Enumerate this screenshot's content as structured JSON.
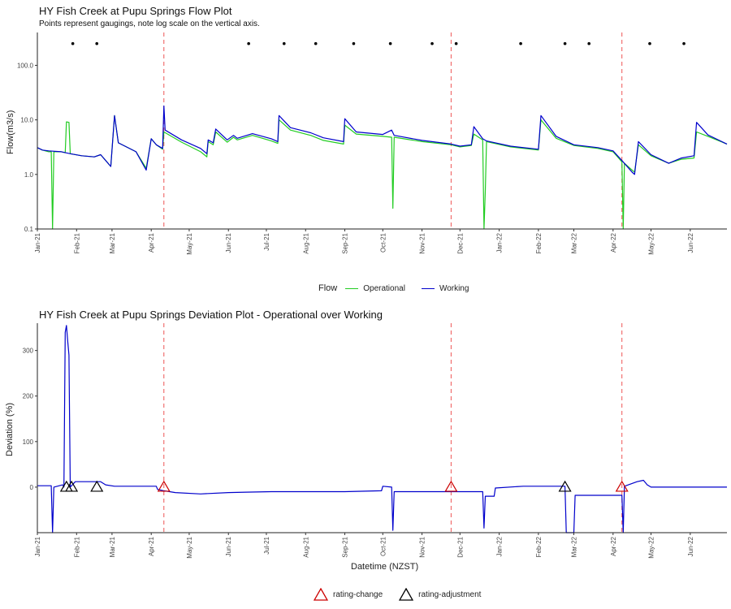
{
  "chart_data": [
    {
      "type": "line",
      "title": "HY Fish Creek at Pupu Springs Flow Plot",
      "subtitle": "Points represent gaugings, note log scale on the vertical axis.",
      "xlabel": "",
      "ylabel": "Flow(m3/s)",
      "y_scale": "log10",
      "ylim": [
        0.1,
        400
      ],
      "xlim": [
        "2021-01-01",
        "2022-06-30"
      ],
      "yticks": [
        "0.1",
        "1.0",
        "10.0",
        "100.0"
      ],
      "ytick_values": [
        0.1,
        1,
        10,
        100
      ],
      "xticks": [
        "Jan-21",
        "Feb-21",
        "Mar-21",
        "Apr-21",
        "May-21",
        "Jun-21",
        "Jul-21",
        "Aug-21",
        "Sep-21",
        "Oct-21",
        "Nov-21",
        "Dec-21",
        "Jan-22",
        "Feb-22",
        "Mar-22",
        "Apr-22",
        "May-22",
        "Jun-22"
      ],
      "xtick_dates": [
        "2021-01-01",
        "2021-02-01",
        "2021-03-01",
        "2021-04-01",
        "2021-05-01",
        "2021-06-01",
        "2021-07-01",
        "2021-08-01",
        "2021-09-01",
        "2021-10-01",
        "2021-11-01",
        "2021-12-01",
        "2022-01-01",
        "2022-02-01",
        "2022-03-01",
        "2022-04-01",
        "2022-05-01",
        "2022-06-01"
      ],
      "grid": false,
      "legend": "bottom",
      "legend_title": "Flow",
      "series": [
        {
          "name": "Operational",
          "color": "#22cc22",
          "points": [
            [
              "2021-01-01",
              3.1
            ],
            [
              "2021-01-05",
              2.8
            ],
            [
              "2021-01-10",
              2.6
            ],
            [
              "2021-01-12",
              2.6
            ],
            [
              "2021-01-13",
              0.1
            ],
            [
              "2021-01-14",
              2.6
            ],
            [
              "2021-01-20",
              2.6
            ],
            [
              "2021-01-23",
              2.5
            ],
            [
              "2021-01-24",
              9.2
            ],
            [
              "2021-01-26",
              9.0
            ],
            [
              "2021-01-27",
              2.4
            ],
            [
              "2021-02-05",
              2.2
            ],
            [
              "2021-02-15",
              2.1
            ],
            [
              "2021-02-20",
              2.3
            ],
            [
              "2021-02-28",
              1.4
            ],
            [
              "2021-03-03",
              12.0
            ],
            [
              "2021-03-06",
              3.8
            ],
            [
              "2021-03-20",
              2.6
            ],
            [
              "2021-03-28",
              1.3
            ],
            [
              "2021-04-01",
              4.5
            ],
            [
              "2021-04-05",
              3.5
            ],
            [
              "2021-04-10",
              2.9
            ],
            [
              "2021-04-11",
              6.0
            ],
            [
              "2021-04-25",
              3.9
            ],
            [
              "2021-05-10",
              2.6
            ],
            [
              "2021-05-15",
              2.1
            ],
            [
              "2021-05-16",
              4.0
            ],
            [
              "2021-05-20",
              3.5
            ],
            [
              "2021-05-22",
              6.0
            ],
            [
              "2021-05-31",
              3.9
            ],
            [
              "2021-06-05",
              4.8
            ],
            [
              "2021-06-08",
              4.3
            ],
            [
              "2021-06-20",
              5.2
            ],
            [
              "2021-07-05",
              4.1
            ],
            [
              "2021-07-10",
              3.7
            ],
            [
              "2021-07-11",
              10.0
            ],
            [
              "2021-07-20",
              6.5
            ],
            [
              "2021-08-05",
              5.2
            ],
            [
              "2021-08-15",
              4.2
            ],
            [
              "2021-08-31",
              3.6
            ],
            [
              "2021-09-01",
              8.0
            ],
            [
              "2021-09-10",
              5.5
            ],
            [
              "2021-10-01",
              5.0
            ],
            [
              "2021-10-08",
              4.8
            ],
            [
              "2021-10-09",
              0.24
            ],
            [
              "2021-10-10",
              4.8
            ],
            [
              "2021-11-01",
              4.0
            ],
            [
              "2021-11-24",
              3.5
            ],
            [
              "2021-12-01",
              3.2
            ],
            [
              "2021-12-10",
              3.4
            ],
            [
              "2021-12-12",
              5.5
            ],
            [
              "2021-12-19",
              4.3
            ],
            [
              "2021-12-20",
              0.1
            ],
            [
              "2021-12-21",
              0.5
            ],
            [
              "2021-12-22",
              4.0
            ],
            [
              "2022-01-10",
              3.2
            ],
            [
              "2022-02-01",
              2.8
            ],
            [
              "2022-02-03",
              10.0
            ],
            [
              "2022-02-15",
              4.6
            ],
            [
              "2022-03-01",
              3.4
            ],
            [
              "2022-03-20",
              3.0
            ],
            [
              "2022-04-01",
              2.6
            ],
            [
              "2022-04-08",
              1.7
            ],
            [
              "2022-04-09",
              0.1
            ],
            [
              "2022-04-10",
              1.6
            ],
            [
              "2022-04-16",
              1.2
            ],
            [
              "2022-04-18",
              1.1
            ],
            [
              "2022-04-21",
              3.5
            ],
            [
              "2022-05-01",
              2.2
            ],
            [
              "2022-05-15",
              1.6
            ],
            [
              "2022-05-25",
              1.9
            ],
            [
              "2022-06-04",
              2.0
            ],
            [
              "2022-06-06",
              6.0
            ],
            [
              "2022-06-15",
              5.0
            ],
            [
              "2022-06-30",
              3.6
            ]
          ]
        },
        {
          "name": "Working",
          "color": "#0000cc",
          "points": [
            [
              "2021-01-01",
              3.1
            ],
            [
              "2021-01-05",
              2.8
            ],
            [
              "2021-01-10",
              2.7
            ],
            [
              "2021-01-20",
              2.6
            ],
            [
              "2021-01-27",
              2.4
            ],
            [
              "2021-02-05",
              2.2
            ],
            [
              "2021-02-15",
              2.1
            ],
            [
              "2021-02-20",
              2.3
            ],
            [
              "2021-02-28",
              1.4
            ],
            [
              "2021-03-03",
              12.0
            ],
            [
              "2021-03-06",
              3.8
            ],
            [
              "2021-03-20",
              2.6
            ],
            [
              "2021-03-28",
              1.2
            ],
            [
              "2021-04-01",
              4.5
            ],
            [
              "2021-04-05",
              3.5
            ],
            [
              "2021-04-10",
              3.0
            ],
            [
              "2021-04-11",
              18.0
            ],
            [
              "2021-04-12",
              6.5
            ],
            [
              "2021-04-25",
              4.3
            ],
            [
              "2021-05-10",
              3.0
            ],
            [
              "2021-05-15",
              2.4
            ],
            [
              "2021-05-16",
              4.3
            ],
            [
              "2021-05-20",
              3.8
            ],
            [
              "2021-05-22",
              6.8
            ],
            [
              "2021-05-31",
              4.3
            ],
            [
              "2021-06-05",
              5.2
            ],
            [
              "2021-06-08",
              4.6
            ],
            [
              "2021-06-20",
              5.6
            ],
            [
              "2021-07-05",
              4.5
            ],
            [
              "2021-07-10",
              4.0
            ],
            [
              "2021-07-11",
              12.0
            ],
            [
              "2021-07-20",
              7.2
            ],
            [
              "2021-08-05",
              5.8
            ],
            [
              "2021-08-15",
              4.7
            ],
            [
              "2021-08-31",
              4.0
            ],
            [
              "2021-09-01",
              10.5
            ],
            [
              "2021-09-10",
              6.0
            ],
            [
              "2021-10-01",
              5.4
            ],
            [
              "2021-10-08",
              6.5
            ],
            [
              "2021-10-10",
              5.2
            ],
            [
              "2021-11-01",
              4.2
            ],
            [
              "2021-11-24",
              3.6
            ],
            [
              "2021-12-01",
              3.3
            ],
            [
              "2021-12-10",
              3.5
            ],
            [
              "2021-12-12",
              7.5
            ],
            [
              "2021-12-19",
              4.5
            ],
            [
              "2021-12-22",
              4.1
            ],
            [
              "2022-01-10",
              3.3
            ],
            [
              "2022-02-01",
              2.9
            ],
            [
              "2022-02-03",
              12.0
            ],
            [
              "2022-02-15",
              5.0
            ],
            [
              "2022-03-01",
              3.5
            ],
            [
              "2022-03-20",
              3.1
            ],
            [
              "2022-04-01",
              2.7
            ],
            [
              "2022-04-08",
              1.8
            ],
            [
              "2022-04-16",
              1.1
            ],
            [
              "2022-04-18",
              1.0
            ],
            [
              "2022-04-21",
              4.0
            ],
            [
              "2022-05-01",
              2.3
            ],
            [
              "2022-05-15",
              1.6
            ],
            [
              "2022-05-25",
              2.0
            ],
            [
              "2022-06-04",
              2.2
            ],
            [
              "2022-06-06",
              9.0
            ],
            [
              "2022-06-15",
              5.3
            ],
            [
              "2022-06-30",
              3.6
            ]
          ]
        }
      ],
      "gaugings": {
        "y": 250,
        "dates": [
          "2021-01-29",
          "2021-02-17",
          "2021-06-17",
          "2021-07-15",
          "2021-08-09",
          "2021-09-08",
          "2021-10-07",
          "2021-11-09",
          "2021-11-28",
          "2022-01-18",
          "2022-02-22",
          "2022-03-13",
          "2022-04-30",
          "2022-05-27"
        ]
      },
      "rating_change_dates": [
        "2021-04-11",
        "2021-11-24",
        "2022-04-08"
      ]
    },
    {
      "type": "line",
      "title": "HY Fish Creek at Pupu Springs Deviation Plot - Operational over Working",
      "xlabel": "Datetime (NZST)",
      "ylabel": "Deviation (%)",
      "ylim": [
        -100,
        360
      ],
      "xlim": [
        "2021-01-01",
        "2022-06-30"
      ],
      "yticks": [
        "0",
        "100",
        "200",
        "300"
      ],
      "ytick_values": [
        0,
        100,
        200,
        300
      ],
      "xticks": [
        "Jan-21",
        "Feb-21",
        "Mar-21",
        "Apr-21",
        "May-21",
        "Jun-21",
        "Jul-21",
        "Aug-21",
        "Sep-21",
        "Oct-21",
        "Nov-21",
        "Dec-21",
        "Jan-22",
        "Feb-22",
        "Mar-22",
        "Apr-22",
        "May-22",
        "Jun-22"
      ],
      "xtick_dates": [
        "2021-01-01",
        "2021-02-01",
        "2021-03-01",
        "2021-04-01",
        "2021-05-01",
        "2021-06-01",
        "2021-07-01",
        "2021-08-01",
        "2021-09-01",
        "2021-10-01",
        "2021-11-01",
        "2021-12-01",
        "2022-01-01",
        "2022-02-01",
        "2022-03-01",
        "2022-04-01",
        "2022-05-01",
        "2022-06-01"
      ],
      "grid": false,
      "legend": "bottom",
      "series": [
        {
          "name": "",
          "color": "#0000cc",
          "points": [
            [
              "2021-01-01",
              3
            ],
            [
              "2021-01-12",
              3
            ],
            [
              "2021-01-13",
              -100
            ],
            [
              "2021-01-14",
              0
            ],
            [
              "2021-01-21",
              5
            ],
            [
              "2021-01-22",
              0
            ],
            [
              "2021-01-23",
              340
            ],
            [
              "2021-01-24",
              355
            ],
            [
              "2021-01-25",
              320
            ],
            [
              "2021-01-26",
              290
            ],
            [
              "2021-01-27",
              0
            ],
            [
              "2021-01-31",
              12
            ],
            [
              "2021-02-20",
              12
            ],
            [
              "2021-02-24",
              5
            ],
            [
              "2021-03-03",
              2
            ],
            [
              "2021-04-01",
              2
            ],
            [
              "2021-04-05",
              2
            ],
            [
              "2021-04-06",
              -5
            ],
            [
              "2021-04-11",
              -8
            ],
            [
              "2021-04-20",
              -12
            ],
            [
              "2021-05-10",
              -15
            ],
            [
              "2021-06-01",
              -12
            ],
            [
              "2021-06-15",
              -11
            ],
            [
              "2021-07-05",
              -10
            ],
            [
              "2021-08-05",
              -10
            ],
            [
              "2021-09-01",
              -10
            ],
            [
              "2021-09-30",
              -8
            ],
            [
              "2021-10-01",
              2
            ],
            [
              "2021-10-08",
              0
            ],
            [
              "2021-10-09",
              -95
            ],
            [
              "2021-10-10",
              -10
            ],
            [
              "2021-11-01",
              -10
            ],
            [
              "2021-11-24",
              -10
            ],
            [
              "2021-12-19",
              -10
            ],
            [
              "2021-12-20",
              -90
            ],
            [
              "2021-12-21",
              -20
            ],
            [
              "2021-12-28",
              -20
            ],
            [
              "2021-12-29",
              -2
            ],
            [
              "2022-01-20",
              2
            ],
            [
              "2022-02-22",
              2
            ],
            [
              "2022-02-23",
              -100
            ],
            [
              "2022-03-01",
              -100
            ],
            [
              "2022-03-02",
              -18
            ],
            [
              "2022-04-08",
              -18
            ],
            [
              "2022-04-09",
              -100
            ],
            [
              "2022-04-10",
              2
            ],
            [
              "2022-04-20",
              12
            ],
            [
              "2022-04-25",
              15
            ],
            [
              "2022-04-28",
              5
            ],
            [
              "2022-05-01",
              0
            ],
            [
              "2022-05-10",
              0
            ],
            [
              "2022-06-30",
              0
            ]
          ]
        }
      ],
      "markers": {
        "rating-change": {
          "color": "#cc0000",
          "dates": [
            "2021-04-11",
            "2021-11-24",
            "2022-04-08"
          ],
          "y": 0
        },
        "rating-adjustment": {
          "color": "#000000",
          "dates": [
            "2021-01-24",
            "2021-01-28",
            "2021-02-17",
            "2022-02-22"
          ],
          "y": 0
        }
      },
      "rating_change_dates": [
        "2021-04-11",
        "2021-11-24",
        "2022-04-08"
      ]
    }
  ],
  "legend1": {
    "title": "Flow",
    "items": [
      {
        "label": "Operational",
        "color": "#22cc22"
      },
      {
        "label": "Working",
        "color": "#0000cc"
      }
    ]
  },
  "legend2": {
    "items": [
      {
        "label": "rating-change",
        "color": "#cc0000"
      },
      {
        "label": "rating-adjustment",
        "color": "#000000"
      }
    ]
  }
}
